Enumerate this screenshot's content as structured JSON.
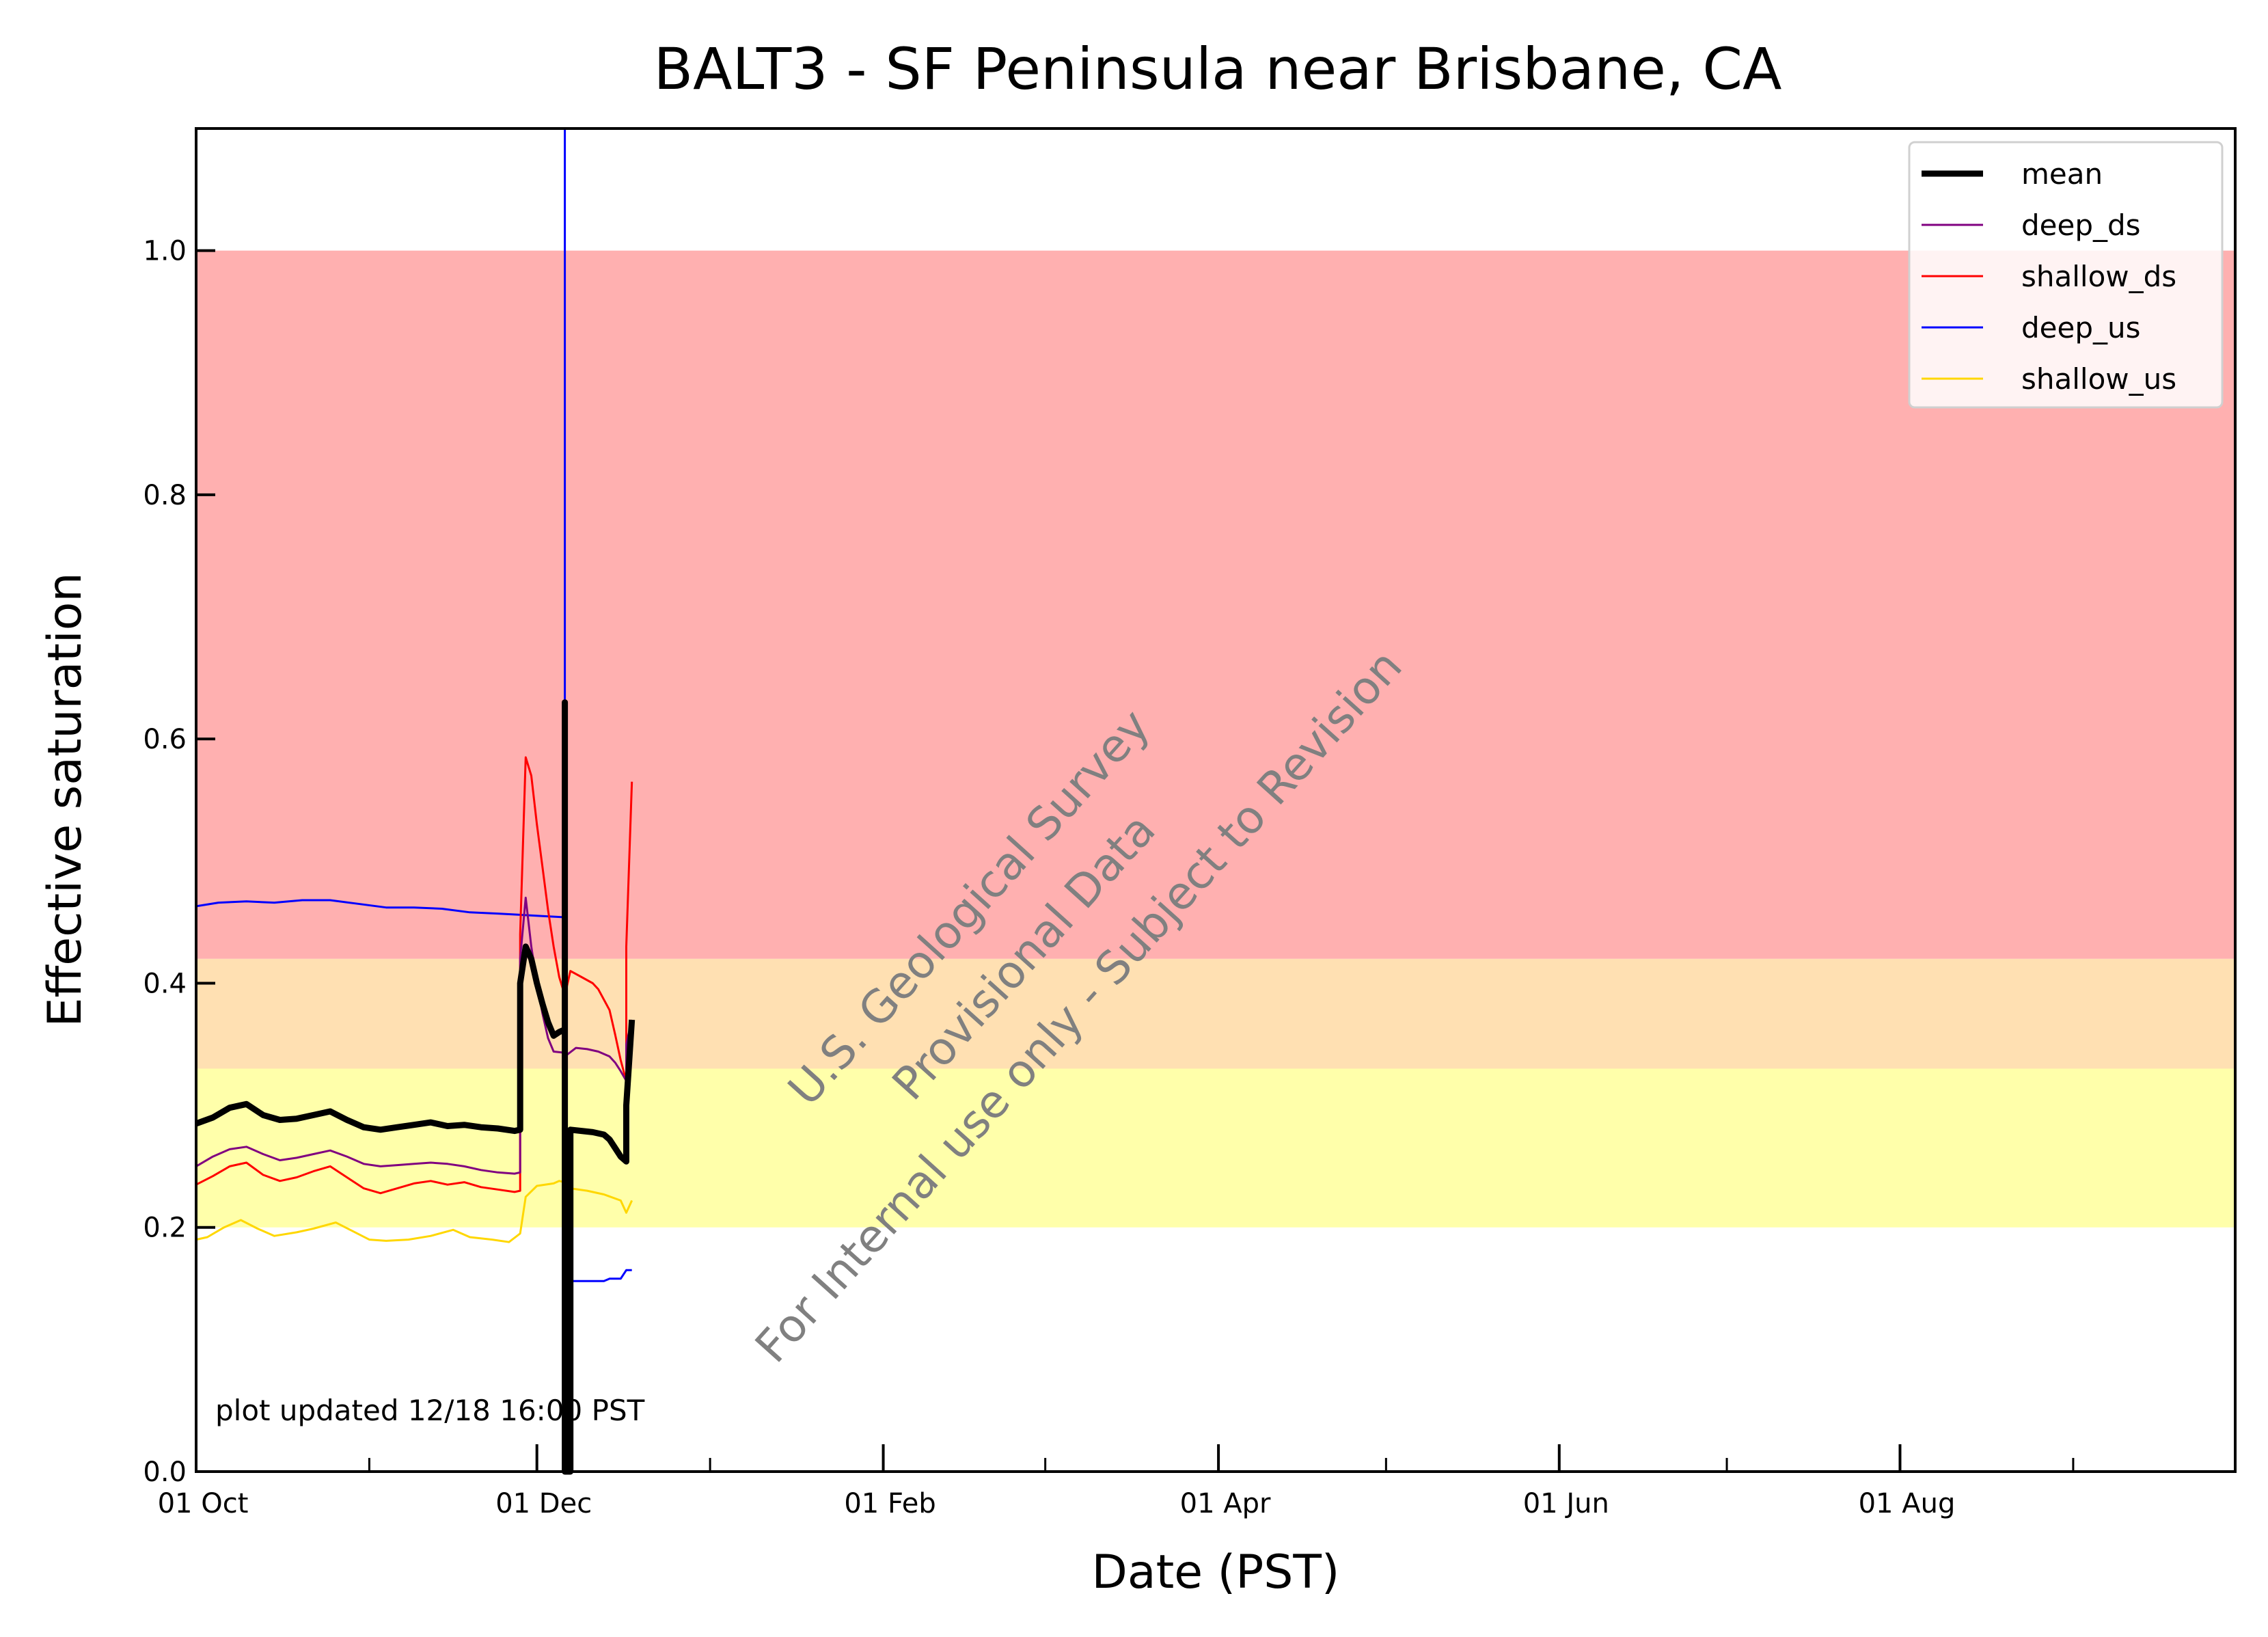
{
  "chart_data": {
    "type": "line",
    "title": "BALT3 - SF Peninsula near Brisbane, CA",
    "xlabel": "Date (PST)",
    "ylabel": "Effective saturation",
    "xlim": [
      "2023-10-01",
      "2024-09-30"
    ],
    "ylim": [
      0,
      1.1
    ],
    "x_tick_labels": [
      {
        "date": "2023-10-01",
        "label": "01 Oct"
      },
      {
        "date": "2023-12-01",
        "label": "01 Dec"
      },
      {
        "date": "2024-02-01",
        "label": "01 Feb"
      },
      {
        "date": "2024-04-01",
        "label": "01 Apr"
      },
      {
        "date": "2024-06-01",
        "label": "01 Jun"
      },
      {
        "date": "2024-08-01",
        "label": "01 Aug"
      }
    ],
    "x_minor_ticks": [
      "2023-11-01",
      "2024-01-01",
      "2024-03-01",
      "2024-05-01",
      "2024-07-01",
      "2024-09-01"
    ],
    "y_ticks": [
      0.0,
      0.2,
      0.4,
      0.6,
      0.8,
      1.0
    ],
    "y_tick_labels": [
      "0.0",
      "0.2",
      "0.4",
      "0.6",
      "0.8",
      "1.0"
    ],
    "grid": false,
    "legend_position": "top-right",
    "bands": [
      {
        "y0": 0.2,
        "y1": 0.33,
        "color": "#ffffaa"
      },
      {
        "y0": 0.33,
        "y1": 0.42,
        "color": "#ffe0b2"
      },
      {
        "y0": 0.42,
        "y1": 1.0,
        "color": "#ffb0b0"
      }
    ],
    "series": [
      {
        "name": "deep_us",
        "color": "#0000ff",
        "width": 3,
        "points": [
          [
            "2023-10-01",
            0.463
          ],
          [
            "2023-10-05",
            0.466
          ],
          [
            "2023-10-10",
            0.467
          ],
          [
            "2023-10-15",
            0.466
          ],
          [
            "2023-10-20",
            0.468
          ],
          [
            "2023-10-25",
            0.468
          ],
          [
            "2023-10-30",
            0.465
          ],
          [
            "2023-11-04",
            0.462
          ],
          [
            "2023-11-09",
            0.462
          ],
          [
            "2023-11-14",
            0.461
          ],
          [
            "2023-11-19",
            0.458
          ],
          [
            "2023-11-24",
            0.457
          ],
          [
            "2023-11-28",
            0.456
          ],
          [
            "2023-12-02",
            0.455
          ],
          [
            "2023-12-06",
            0.454
          ],
          [
            "2023-12-06",
            0.58
          ],
          [
            "2023-12-06",
            1.1
          ],
          [
            "2023-12-06",
            0.16
          ],
          [
            "2023-12-07",
            0.156
          ],
          [
            "2023-12-13",
            0.156
          ],
          [
            "2023-12-14",
            0.158
          ],
          [
            "2023-12-16",
            0.158
          ],
          [
            "2023-12-17",
            0.165
          ],
          [
            "2023-12-18",
            0.165
          ]
        ]
      },
      {
        "name": "shallow_us",
        "color": "#ffd700",
        "width": 3,
        "points": [
          [
            "2023-10-01",
            0.19
          ],
          [
            "2023-10-03",
            0.192
          ],
          [
            "2023-10-06",
            0.2
          ],
          [
            "2023-10-09",
            0.206
          ],
          [
            "2023-10-12",
            0.199
          ],
          [
            "2023-10-15",
            0.193
          ],
          [
            "2023-10-19",
            0.196
          ],
          [
            "2023-10-22",
            0.199
          ],
          [
            "2023-10-26",
            0.204
          ],
          [
            "2023-10-29",
            0.197
          ],
          [
            "2023-11-01",
            0.19
          ],
          [
            "2023-11-04",
            0.189
          ],
          [
            "2023-11-08",
            0.19
          ],
          [
            "2023-11-12",
            0.193
          ],
          [
            "2023-11-16",
            0.198
          ],
          [
            "2023-11-19",
            0.192
          ],
          [
            "2023-11-23",
            0.19
          ],
          [
            "2023-11-26",
            0.188
          ],
          [
            "2023-11-28",
            0.195
          ],
          [
            "2023-11-29",
            0.225
          ],
          [
            "2023-12-01",
            0.234
          ],
          [
            "2023-12-04",
            0.236
          ],
          [
            "2023-12-05",
            0.238
          ],
          [
            "2023-12-06",
            0.237
          ],
          [
            "2023-12-06",
            0.33
          ],
          [
            "2023-12-06",
            0.0
          ],
          [
            "2023-12-07",
            0.0
          ],
          [
            "2023-12-07",
            0.232
          ],
          [
            "2023-12-10",
            0.23
          ],
          [
            "2023-12-13",
            0.227
          ],
          [
            "2023-12-16",
            0.222
          ],
          [
            "2023-12-17",
            0.212
          ],
          [
            "2023-12-18",
            0.222
          ]
        ]
      },
      {
        "name": "shallow_ds",
        "color": "#ff0000",
        "width": 3,
        "points": [
          [
            "2023-10-01",
            0.235
          ],
          [
            "2023-10-04",
            0.242
          ],
          [
            "2023-10-07",
            0.25
          ],
          [
            "2023-10-10",
            0.253
          ],
          [
            "2023-10-13",
            0.243
          ],
          [
            "2023-10-16",
            0.238
          ],
          [
            "2023-10-19",
            0.241
          ],
          [
            "2023-10-22",
            0.246
          ],
          [
            "2023-10-25",
            0.25
          ],
          [
            "2023-10-28",
            0.241
          ],
          [
            "2023-10-31",
            0.232
          ],
          [
            "2023-11-03",
            0.228
          ],
          [
            "2023-11-06",
            0.232
          ],
          [
            "2023-11-09",
            0.236
          ],
          [
            "2023-11-12",
            0.238
          ],
          [
            "2023-11-15",
            0.235
          ],
          [
            "2023-11-18",
            0.237
          ],
          [
            "2023-11-21",
            0.233
          ],
          [
            "2023-11-24",
            0.231
          ],
          [
            "2023-11-27",
            0.229
          ],
          [
            "2023-11-28",
            0.23
          ],
          [
            "2023-11-28",
            0.44
          ],
          [
            "2023-11-29",
            0.585
          ],
          [
            "2023-11-30",
            0.57
          ],
          [
            "2023-12-01",
            0.53
          ],
          [
            "2023-12-02",
            0.495
          ],
          [
            "2023-12-03",
            0.46
          ],
          [
            "2023-12-04",
            0.43
          ],
          [
            "2023-12-05",
            0.405
          ],
          [
            "2023-12-06",
            0.39
          ],
          [
            "2023-12-06",
            0.5
          ],
          [
            "2023-12-06",
            0.39
          ],
          [
            "2023-12-07",
            0.41
          ],
          [
            "2023-12-09",
            0.405
          ],
          [
            "2023-12-11",
            0.4
          ],
          [
            "2023-12-12",
            0.395
          ],
          [
            "2023-12-14",
            0.378
          ],
          [
            "2023-12-15",
            0.358
          ],
          [
            "2023-12-16",
            0.337
          ],
          [
            "2023-12-17",
            0.32
          ],
          [
            "2023-12-17",
            0.43
          ],
          [
            "2023-12-18",
            0.565
          ]
        ]
      },
      {
        "name": "deep_ds",
        "color": "#800080",
        "width": 3,
        "points": [
          [
            "2023-10-01",
            0.25
          ],
          [
            "2023-10-04",
            0.258
          ],
          [
            "2023-10-07",
            0.264
          ],
          [
            "2023-10-10",
            0.266
          ],
          [
            "2023-10-13",
            0.26
          ],
          [
            "2023-10-16",
            0.255
          ],
          [
            "2023-10-19",
            0.257
          ],
          [
            "2023-10-22",
            0.26
          ],
          [
            "2023-10-25",
            0.263
          ],
          [
            "2023-10-28",
            0.258
          ],
          [
            "2023-10-31",
            0.252
          ],
          [
            "2023-11-03",
            0.25
          ],
          [
            "2023-11-06",
            0.251
          ],
          [
            "2023-11-09",
            0.252
          ],
          [
            "2023-11-12",
            0.253
          ],
          [
            "2023-11-15",
            0.252
          ],
          [
            "2023-11-18",
            0.25
          ],
          [
            "2023-11-21",
            0.247
          ],
          [
            "2023-11-24",
            0.245
          ],
          [
            "2023-11-27",
            0.244
          ],
          [
            "2023-11-28",
            0.245
          ],
          [
            "2023-11-28",
            0.42
          ],
          [
            "2023-11-29",
            0.47
          ],
          [
            "2023-11-30",
            0.43
          ],
          [
            "2023-12-01",
            0.4
          ],
          [
            "2023-12-02",
            0.375
          ],
          [
            "2023-12-03",
            0.355
          ],
          [
            "2023-12-04",
            0.344
          ],
          [
            "2023-12-06",
            0.343
          ],
          [
            "2023-12-06",
            0.6
          ],
          [
            "2023-12-06",
            0.34
          ],
          [
            "2023-12-08",
            0.347
          ],
          [
            "2023-12-10",
            0.346
          ],
          [
            "2023-12-12",
            0.344
          ],
          [
            "2023-12-14",
            0.34
          ],
          [
            "2023-12-15",
            0.335
          ],
          [
            "2023-12-16",
            0.328
          ],
          [
            "2023-12-17",
            0.32
          ],
          [
            "2023-12-17",
            0.35
          ],
          [
            "2023-12-18",
            0.37
          ]
        ]
      },
      {
        "name": "mean",
        "color": "#000000",
        "width": 9,
        "points": [
          [
            "2023-10-01",
            0.285
          ],
          [
            "2023-10-04",
            0.29
          ],
          [
            "2023-10-07",
            0.298
          ],
          [
            "2023-10-10",
            0.301
          ],
          [
            "2023-10-13",
            0.292
          ],
          [
            "2023-10-16",
            0.288
          ],
          [
            "2023-10-19",
            0.289
          ],
          [
            "2023-10-22",
            0.292
          ],
          [
            "2023-10-25",
            0.295
          ],
          [
            "2023-10-28",
            0.288
          ],
          [
            "2023-10-31",
            0.282
          ],
          [
            "2023-11-03",
            0.28
          ],
          [
            "2023-11-06",
            0.282
          ],
          [
            "2023-11-09",
            0.284
          ],
          [
            "2023-11-12",
            0.286
          ],
          [
            "2023-11-15",
            0.283
          ],
          [
            "2023-11-18",
            0.284
          ],
          [
            "2023-11-21",
            0.282
          ],
          [
            "2023-11-24",
            0.281
          ],
          [
            "2023-11-27",
            0.279
          ],
          [
            "2023-11-28",
            0.28
          ],
          [
            "2023-11-28",
            0.4
          ],
          [
            "2023-11-29",
            0.43
          ],
          [
            "2023-11-30",
            0.42
          ],
          [
            "2023-12-01",
            0.4
          ],
          [
            "2023-12-02",
            0.383
          ],
          [
            "2023-12-03",
            0.368
          ],
          [
            "2023-12-04",
            0.357
          ],
          [
            "2023-12-05",
            0.36
          ],
          [
            "2023-12-06",
            0.362
          ],
          [
            "2023-12-06",
            0.63
          ],
          [
            "2023-12-06",
            0.0
          ],
          [
            "2023-12-07",
            0.0
          ],
          [
            "2023-12-07",
            0.28
          ],
          [
            "2023-12-09",
            0.279
          ],
          [
            "2023-12-11",
            0.278
          ],
          [
            "2023-12-13",
            0.276
          ],
          [
            "2023-12-14",
            0.272
          ],
          [
            "2023-12-15",
            0.265
          ],
          [
            "2023-12-16",
            0.258
          ],
          [
            "2023-12-17",
            0.254
          ],
          [
            "2023-12-17",
            0.3
          ],
          [
            "2023-12-18",
            0.37
          ]
        ]
      }
    ],
    "legend_order": [
      "mean",
      "deep_ds",
      "shallow_ds",
      "deep_us",
      "shallow_us"
    ],
    "annotations": {
      "updated_note": "plot updated 12/18 16:00  PST",
      "watermark": [
        "U.S. Geological Survey",
        "Provisional Data",
        "For Internal use only - Subject to Revision"
      ]
    }
  }
}
